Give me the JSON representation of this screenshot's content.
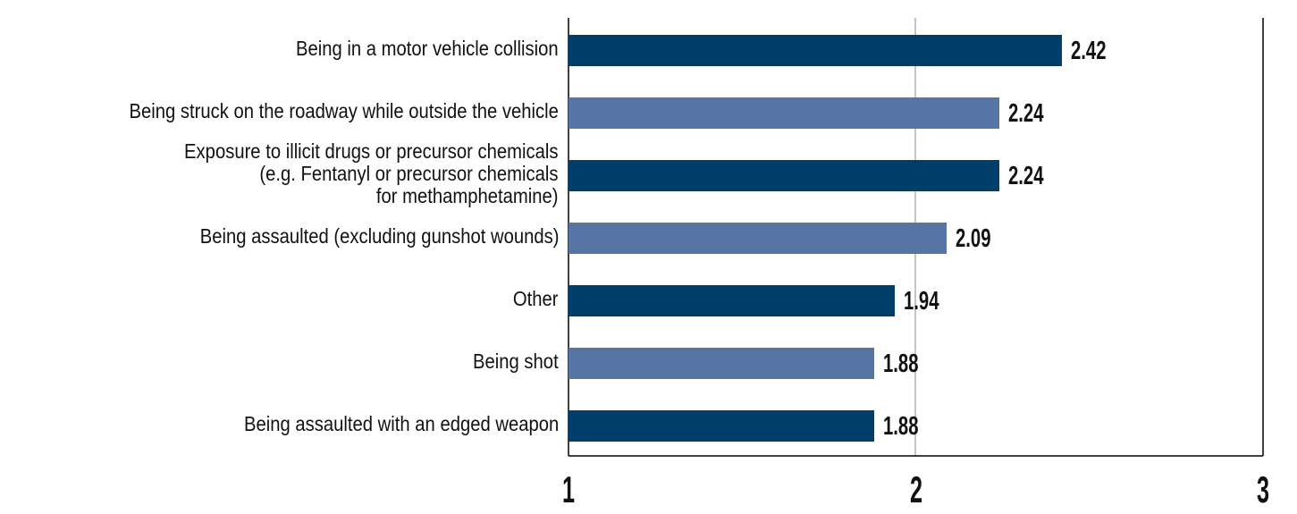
{
  "chart_data": {
    "type": "bar",
    "orientation": "horizontal",
    "title": "",
    "xlabel": "",
    "ylabel": "",
    "xlim": [
      1,
      3
    ],
    "x_ticks": [
      "1",
      "2",
      "3"
    ],
    "grid": true,
    "categories": [
      "Being in a motor vehicle collision",
      "Being struck on the roadway while outside the vehicle",
      "Exposure to illicit drugs or precursor chemicals\n(e.g. Fentanyl or precursor chemicals\nfor methamphetamine)",
      "Being assaulted (excluding gunshot wounds)",
      "Other",
      "Being shot",
      "Being assaulted with an edged weapon"
    ],
    "values": [
      2.42,
      2.24,
      2.24,
      2.09,
      1.94,
      1.88,
      1.88
    ],
    "value_labels": [
      "2.42",
      "2.24",
      "2.24",
      "2.09",
      "1.94",
      "1.88",
      "1.88"
    ],
    "colors": [
      "#003f6b",
      "#5775a4",
      "#003f6b",
      "#5775a4",
      "#003f6b",
      "#5775a4",
      "#003f6b"
    ]
  }
}
